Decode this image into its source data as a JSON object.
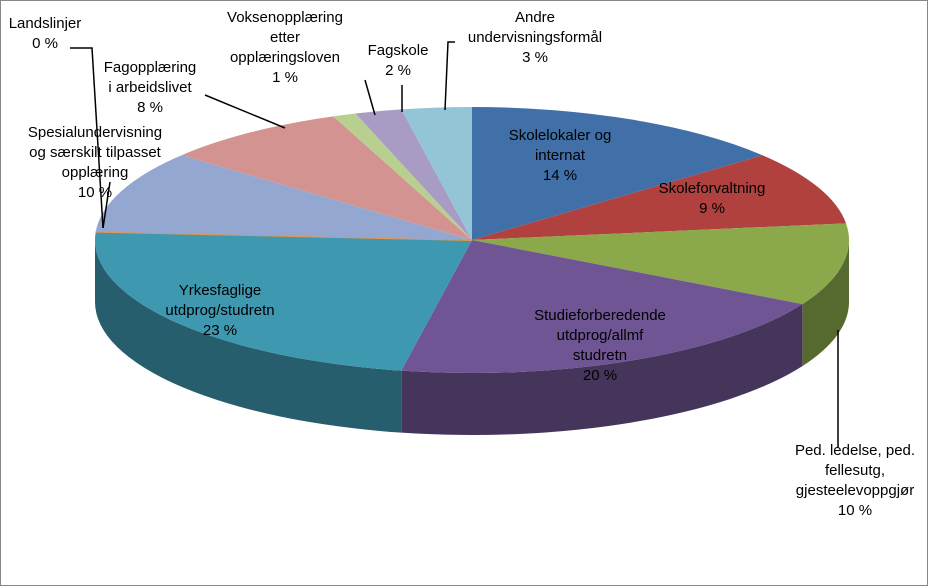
{
  "chart_data": {
    "type": "pie3d",
    "categories": [
      [
        "Skolelokaler og",
        "internat"
      ],
      [
        "Skoleforvaltning"
      ],
      [
        "Ped. ledelse, ped.",
        "fellesutg,",
        "gjesteelevoppgjør"
      ],
      [
        "Studieforberedende",
        "utdprog/allmf",
        "studretn"
      ],
      [
        "Yrkesfaglige",
        "utdprog/studretn"
      ],
      [
        "Landslinjer"
      ],
      [
        "Spesialundervisning",
        "og særskilt tilpasset",
        "opplæring"
      ],
      [
        "Fagopplæring",
        "i arbeidslivet"
      ],
      [
        "Voksenopplæring",
        "etter",
        "opplæringsloven"
      ],
      [
        "Fagskole"
      ],
      [
        "Andre",
        "undervisningsformål"
      ]
    ],
    "values": [
      14,
      9,
      10,
      20,
      23,
      0,
      10,
      8,
      1,
      2,
      3
    ],
    "value_labels": [
      "14 %",
      "9 %",
      "10 %",
      "20 %",
      "23 %",
      "0 %",
      "10 %",
      "8 %",
      "1 %",
      "2 %",
      "3 %"
    ],
    "colors": [
      "#4170a8",
      "#b0413e",
      "#8ba94a",
      "#6f5593",
      "#3e98b0",
      "#e6964a",
      "#94a7d0",
      "#d39391",
      "#b8cf8f",
      "#a99cc4",
      "#93c5d6"
    ]
  }
}
